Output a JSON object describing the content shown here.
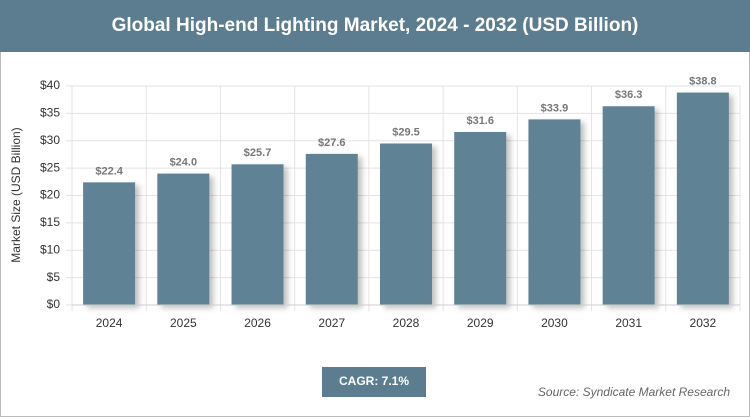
{
  "chart_data": {
    "type": "bar",
    "title": "Global High-end Lighting Market, 2024 - 2032 (USD Billion)",
    "y_label": "Market Size (USD Billion)",
    "categories": [
      "2024",
      "2025",
      "2026",
      "2027",
      "2028",
      "2029",
      "2030",
      "2031",
      "2032"
    ],
    "values": [
      22.4,
      24.0,
      25.7,
      27.6,
      29.5,
      31.6,
      33.9,
      36.3,
      38.8
    ],
    "value_labels": [
      "$22.4",
      "$24.0",
      "$25.7",
      "$27.6",
      "$29.5",
      "$31.6",
      "$33.9",
      "$36.3",
      "$38.8"
    ],
    "color": "#5f8395",
    "ylim": [
      0,
      40
    ],
    "yticks": [
      {
        "value": 0,
        "label": "$0"
      },
      {
        "value": 5,
        "label": "$5"
      },
      {
        "value": 10,
        "label": "$10"
      },
      {
        "value": 15,
        "label": "$15"
      },
      {
        "value": 20,
        "label": "$20"
      },
      {
        "value": 25,
        "label": "$25"
      },
      {
        "value": 30,
        "label": "$30"
      },
      {
        "value": 35,
        "label": "$35"
      },
      {
        "value": 40,
        "label": "$40"
      }
    ],
    "grid": true,
    "cagr": "CAGR: 7.1%",
    "source": "Source: Syndicate Market Research"
  }
}
